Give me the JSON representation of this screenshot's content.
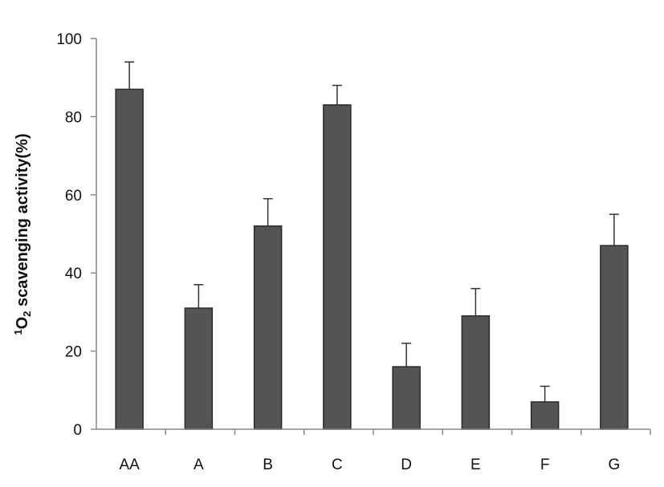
{
  "chart_data": {
    "type": "bar",
    "categories": [
      "AA",
      "A",
      "B",
      "C",
      "D",
      "E",
      "F",
      "G"
    ],
    "values": [
      87,
      31,
      52,
      83,
      16,
      29,
      7,
      47
    ],
    "errors": [
      7,
      6,
      7,
      5,
      6,
      7,
      4,
      8
    ],
    "ylabel": {
      "sup": "1",
      "base": "O",
      "sub": "2",
      "rest": " scavenging activity(%)"
    },
    "xlabel": "",
    "title": "",
    "ylim": [
      0,
      100
    ],
    "yticks": [
      0,
      20,
      40,
      60,
      80,
      100
    ],
    "bar_color": "#545454",
    "grid": false,
    "legend": "none"
  }
}
